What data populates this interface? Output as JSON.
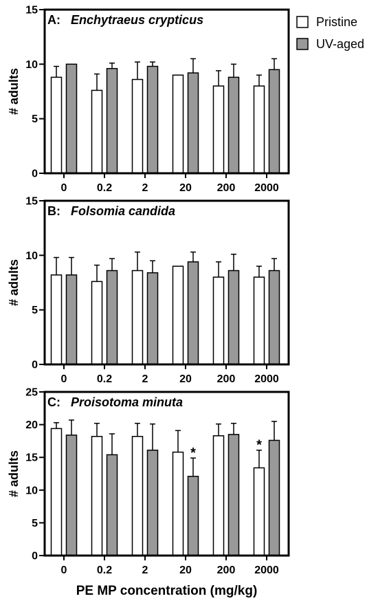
{
  "legend": {
    "position": "right",
    "items": [
      {
        "label": "Pristine",
        "color": "#ffffff"
      },
      {
        "label": "UV-aged",
        "color": "#999999"
      }
    ]
  },
  "chart_data": [
    {
      "type": "bar",
      "panel_label": "A:",
      "title": "Enchytraeus crypticus",
      "xlabel": "",
      "ylabel": "# adults",
      "ylim": [
        0,
        15
      ],
      "yticks": [
        0,
        5,
        10,
        15
      ],
      "grid": false,
      "categories": [
        "0",
        "0.2",
        "2",
        "20",
        "200",
        "2000"
      ],
      "series": [
        {
          "name": "Pristine",
          "color": "#ffffff",
          "values": [
            8.8,
            7.6,
            8.6,
            9.0,
            8.0,
            8.0
          ],
          "errors": [
            1.0,
            1.5,
            1.6,
            0,
            1.4,
            1.0
          ]
        },
        {
          "name": "UV-aged",
          "color": "#999999",
          "values": [
            10.0,
            9.6,
            9.8,
            9.2,
            8.8,
            9.5
          ],
          "errors": [
            0,
            0.5,
            0.4,
            1.3,
            1.2,
            1.0
          ]
        }
      ],
      "annotations": []
    },
    {
      "type": "bar",
      "panel_label": "B:",
      "title": "Folsomia candida",
      "xlabel": "",
      "ylabel": "# adults",
      "ylim": [
        0,
        15
      ],
      "yticks": [
        0,
        5,
        10,
        15
      ],
      "grid": false,
      "categories": [
        "0",
        "0.2",
        "2",
        "20",
        "200",
        "2000"
      ],
      "series": [
        {
          "name": "Pristine",
          "color": "#ffffff",
          "values": [
            8.2,
            7.6,
            8.6,
            9.0,
            8.0,
            8.0
          ],
          "errors": [
            1.6,
            1.5,
            1.7,
            0,
            1.4,
            1.0
          ]
        },
        {
          "name": "UV-aged",
          "color": "#999999",
          "values": [
            8.2,
            8.6,
            8.4,
            9.4,
            8.6,
            8.6
          ],
          "errors": [
            1.6,
            1.1,
            1.1,
            0.9,
            1.5,
            1.1
          ]
        }
      ],
      "annotations": []
    },
    {
      "type": "bar",
      "panel_label": "C:",
      "title": "Proisotoma minuta",
      "xlabel": "PE MP concentration (mg/kg)",
      "ylabel": "# adults",
      "ylim": [
        0,
        25
      ],
      "yticks": [
        0,
        5,
        10,
        15,
        20,
        25
      ],
      "grid": false,
      "categories": [
        "0",
        "0.2",
        "2",
        "20",
        "200",
        "2000"
      ],
      "series": [
        {
          "name": "Pristine",
          "color": "#ffffff",
          "values": [
            19.4,
            18.2,
            18.2,
            15.8,
            18.3,
            13.4
          ],
          "errors": [
            0.9,
            2.0,
            2.0,
            3.3,
            1.8,
            2.7
          ]
        },
        {
          "name": "UV-aged",
          "color": "#999999",
          "values": [
            18.4,
            15.4,
            16.1,
            12.1,
            18.5,
            17.6
          ],
          "errors": [
            2.3,
            3.2,
            4.0,
            2.8,
            1.7,
            2.9
          ]
        }
      ],
      "annotations": [
        {
          "text": "*",
          "category": "20",
          "series": "UV-aged"
        },
        {
          "text": "*",
          "category": "2000",
          "series": "Pristine"
        }
      ]
    }
  ]
}
